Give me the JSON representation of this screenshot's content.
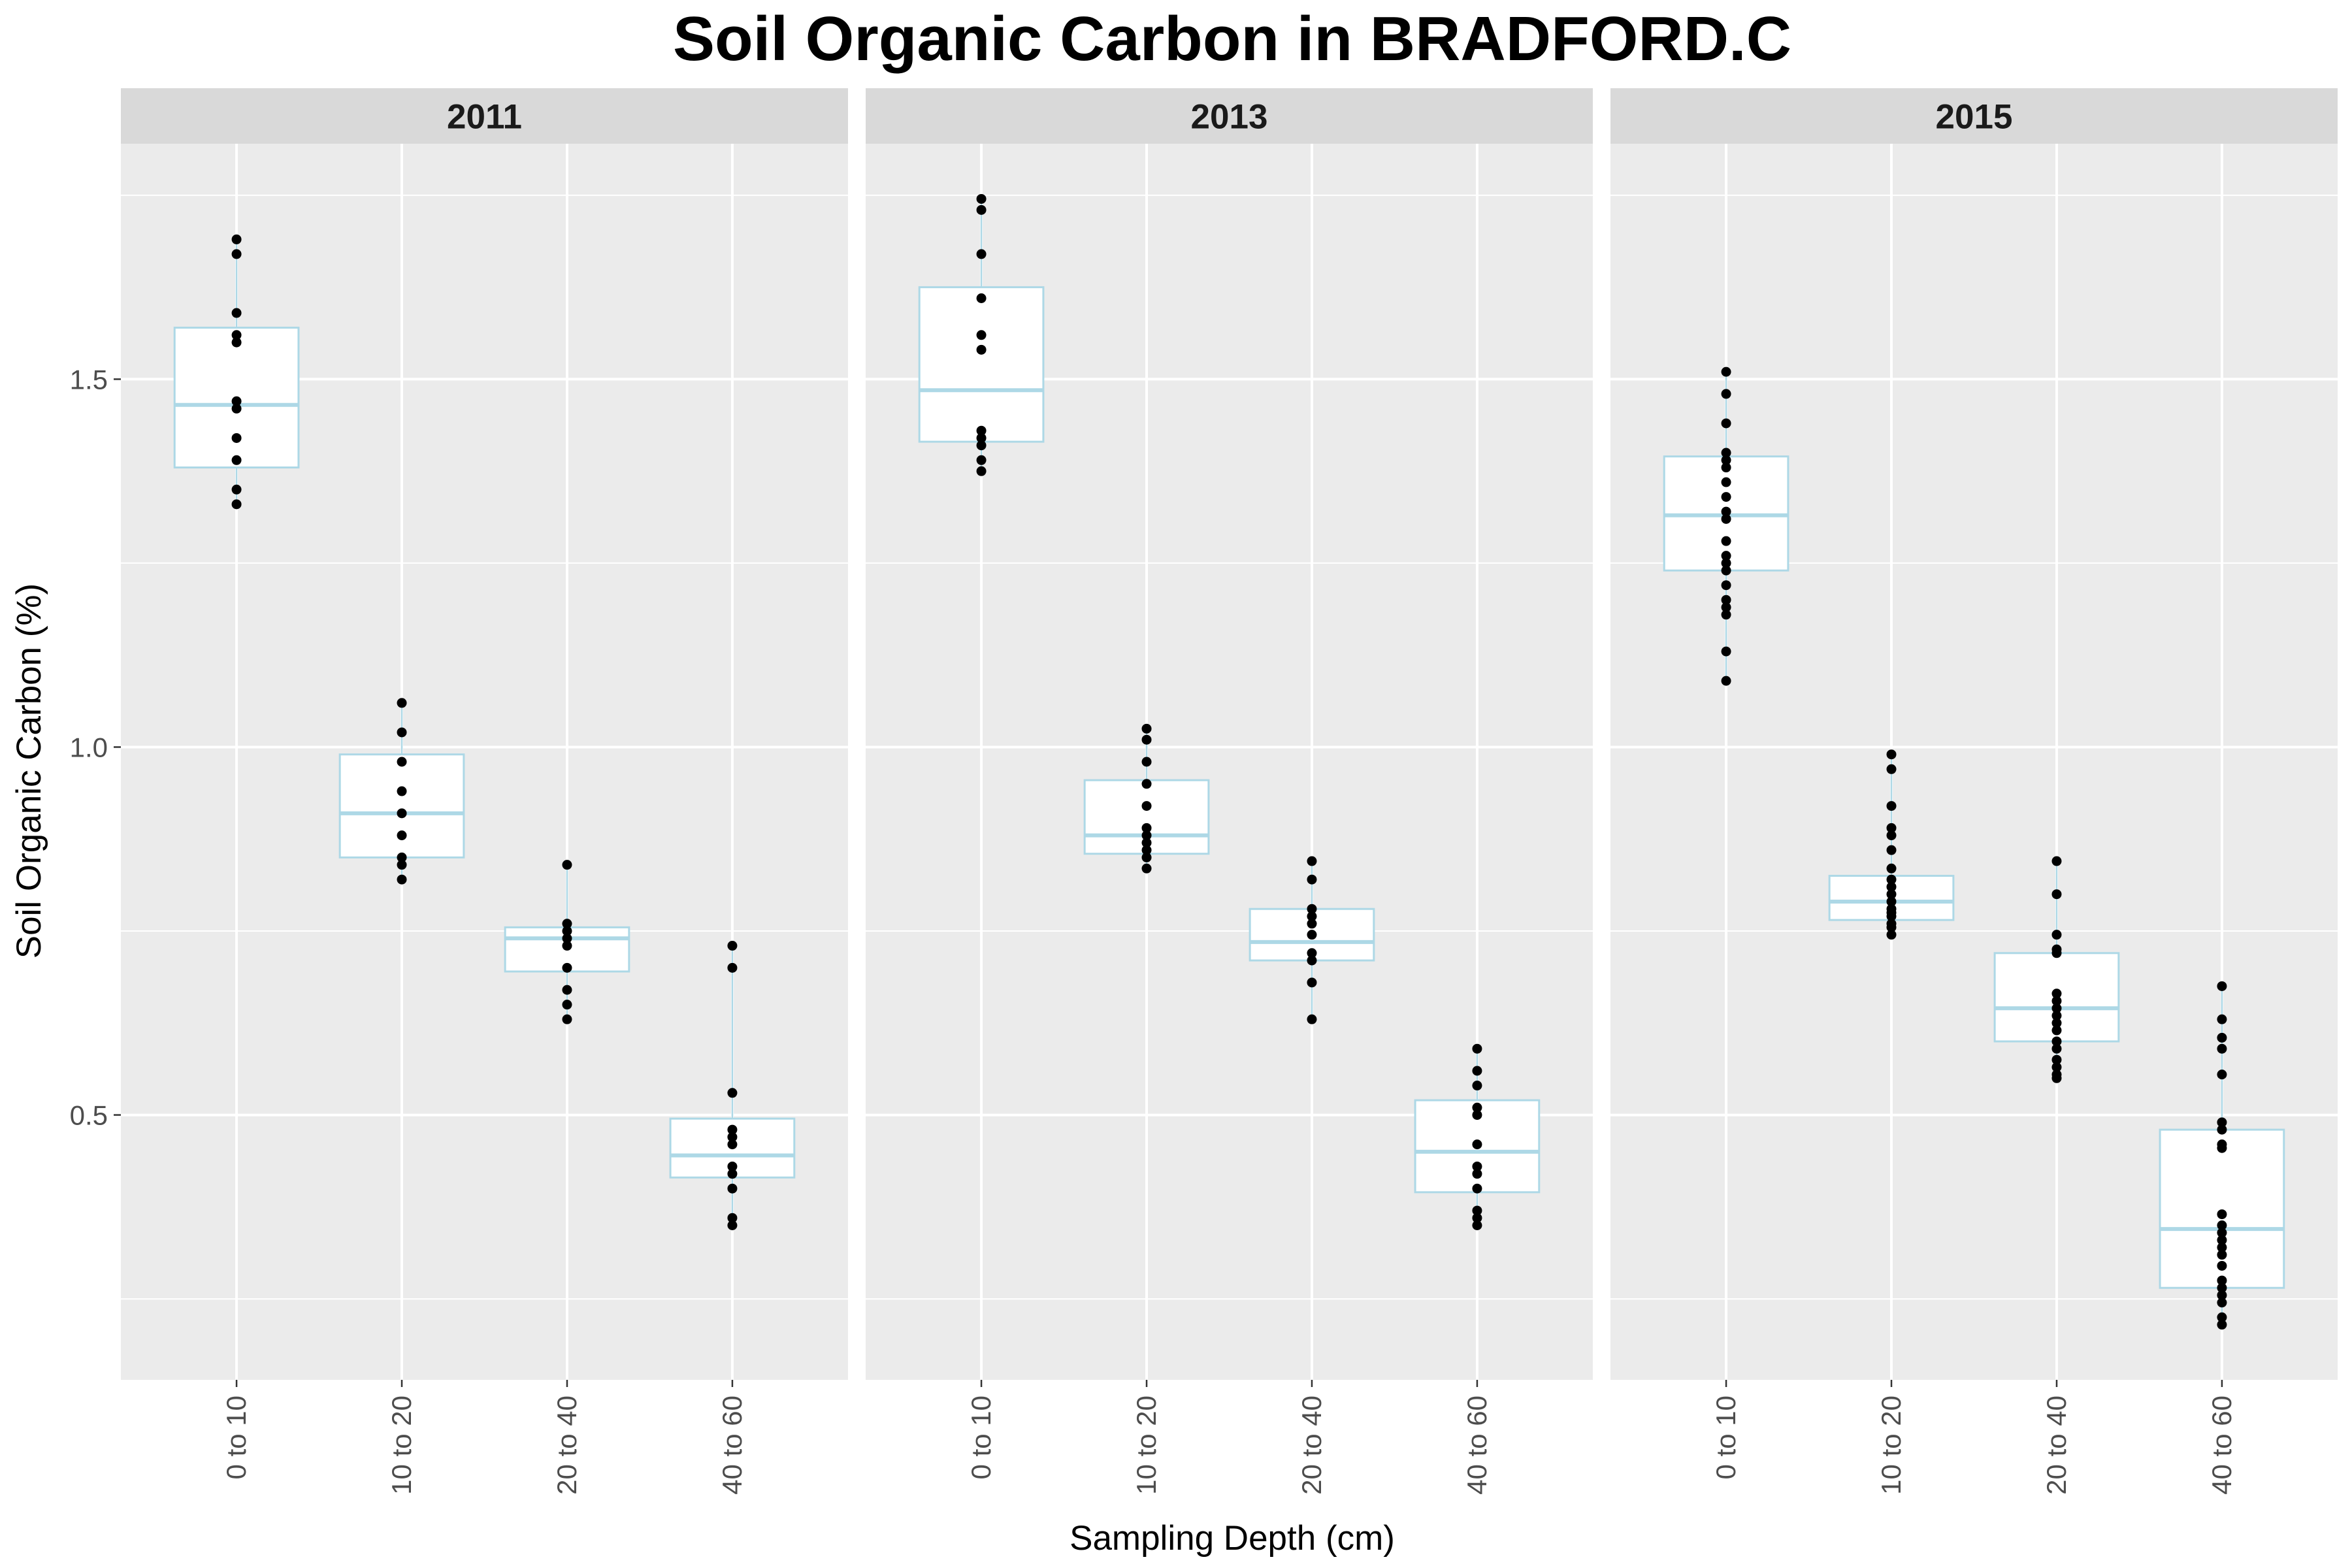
{
  "chart_data": {
    "type": "boxplot",
    "title": "Soil Organic Carbon in BRADFORD.C",
    "xlabel": "Sampling Depth (cm)",
    "ylabel": "Soil Organic Carbon (%)",
    "ylim": [
      0.14,
      1.82
    ],
    "yticks": [
      0.5,
      1.0,
      1.5
    ],
    "ytick_labels": [
      "0.5",
      "1.0",
      "1.5"
    ],
    "categories": [
      "0 to 10",
      "10 to 20",
      "20 to 40",
      "40 to 60"
    ],
    "grid": true,
    "box_color": "#add8e6",
    "point_color": "#000000",
    "panel_bg": "#ebebeb",
    "strip_bg": "#d9d9d9",
    "panels": [
      {
        "label": "2011",
        "boxes": [
          {
            "category": "0 to 10",
            "q1": 1.38,
            "median": 1.465,
            "q3": 1.57,
            "lower": 1.33,
            "upper": 1.69,
            "points": [
              1.69,
              1.67,
              1.59,
              1.56,
              1.55,
              1.47,
              1.46,
              1.42,
              1.39,
              1.35,
              1.33
            ]
          },
          {
            "category": "10 to 20",
            "q1": 0.85,
            "median": 0.91,
            "q3": 0.99,
            "lower": 0.82,
            "upper": 1.06,
            "points": [
              1.06,
              1.02,
              0.98,
              0.94,
              0.91,
              0.88,
              0.85,
              0.84,
              0.82
            ]
          },
          {
            "category": "20 to 40",
            "q1": 0.695,
            "median": 0.74,
            "q3": 0.755,
            "lower": 0.63,
            "upper": 0.84,
            "points": [
              0.84,
              0.76,
              0.75,
              0.74,
              0.73,
              0.7,
              0.67,
              0.65,
              0.63
            ]
          },
          {
            "category": "40 to 60",
            "q1": 0.415,
            "median": 0.445,
            "q3": 0.495,
            "lower": 0.35,
            "upper": 0.73,
            "points": [
              0.73,
              0.7,
              0.53,
              0.48,
              0.47,
              0.46,
              0.43,
              0.42,
              0.4,
              0.36,
              0.35
            ]
          }
        ]
      },
      {
        "label": "2013",
        "boxes": [
          {
            "category": "0 to 10",
            "q1": 1.415,
            "median": 1.485,
            "q3": 1.625,
            "lower": 1.375,
            "upper": 1.745,
            "points": [
              1.745,
              1.73,
              1.67,
              1.61,
              1.56,
              1.54,
              1.43,
              1.42,
              1.41,
              1.39,
              1.375
            ]
          },
          {
            "category": "10 to 20",
            "q1": 0.855,
            "median": 0.88,
            "q3": 0.955,
            "lower": 0.835,
            "upper": 1.025,
            "points": [
              1.025,
              1.01,
              0.98,
              0.95,
              0.92,
              0.89,
              0.88,
              0.87,
              0.86,
              0.85,
              0.835
            ]
          },
          {
            "category": "20 to 40",
            "q1": 0.71,
            "median": 0.735,
            "q3": 0.78,
            "lower": 0.63,
            "upper": 0.845,
            "points": [
              0.845,
              0.82,
              0.78,
              0.77,
              0.76,
              0.745,
              0.72,
              0.71,
              0.68,
              0.63
            ]
          },
          {
            "category": "40 to 60",
            "q1": 0.395,
            "median": 0.45,
            "q3": 0.52,
            "lower": 0.35,
            "upper": 0.59,
            "points": [
              0.59,
              0.56,
              0.54,
              0.51,
              0.5,
              0.46,
              0.43,
              0.42,
              0.4,
              0.37,
              0.36,
              0.35
            ]
          }
        ]
      },
      {
        "label": "2015",
        "boxes": [
          {
            "category": "0 to 10",
            "q1": 1.24,
            "median": 1.315,
            "q3": 1.395,
            "lower": 1.09,
            "upper": 1.51,
            "points": [
              1.51,
              1.48,
              1.44,
              1.4,
              1.39,
              1.38,
              1.36,
              1.34,
              1.32,
              1.31,
              1.28,
              1.26,
              1.25,
              1.24,
              1.22,
              1.2,
              1.19,
              1.18,
              1.13,
              1.09
            ]
          },
          {
            "category": "10 to 20",
            "q1": 0.765,
            "median": 0.79,
            "q3": 0.825,
            "lower": 0.745,
            "upper": 0.99,
            "points": [
              0.99,
              0.97,
              0.92,
              0.89,
              0.88,
              0.86,
              0.835,
              0.82,
              0.81,
              0.8,
              0.79,
              0.78,
              0.775,
              0.77,
              0.76,
              0.755,
              0.745
            ]
          },
          {
            "category": "20 to 40",
            "q1": 0.6,
            "median": 0.645,
            "q3": 0.72,
            "lower": 0.55,
            "upper": 0.845,
            "points": [
              0.845,
              0.8,
              0.745,
              0.725,
              0.72,
              0.665,
              0.655,
              0.645,
              0.635,
              0.625,
              0.615,
              0.6,
              0.59,
              0.575,
              0.565,
              0.555,
              0.55
            ]
          },
          {
            "category": "40 to 60",
            "q1": 0.265,
            "median": 0.345,
            "q3": 0.48,
            "lower": 0.21,
            "upper": 0.675,
            "points": [
              0.675,
              0.63,
              0.605,
              0.59,
              0.555,
              0.49,
              0.48,
              0.46,
              0.455,
              0.365,
              0.35,
              0.34,
              0.33,
              0.32,
              0.31,
              0.295,
              0.275,
              0.265,
              0.255,
              0.245,
              0.225,
              0.215
            ]
          }
        ]
      }
    ]
  }
}
